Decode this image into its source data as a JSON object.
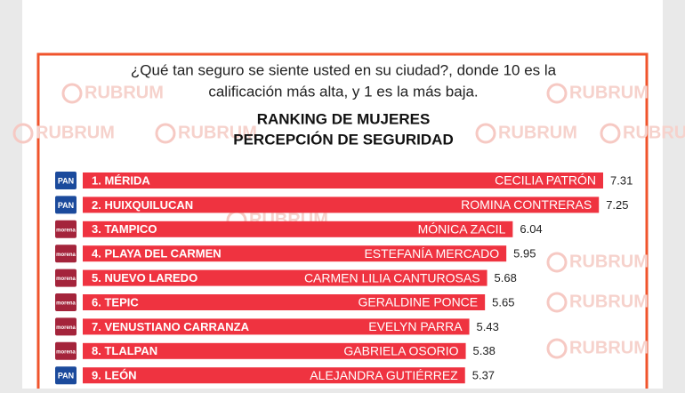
{
  "chart_data": {
    "type": "bar",
    "question": [
      "¿Qué tan seguro se siente usted en su ciudad?, donde 10 es la",
      "calificación más alta, y  1 es la más baja."
    ],
    "title": "RANKING DE MUJERES",
    "subtitle": "PERCEPCIÓN DE SEGURIDAD",
    "watermark": "RUBRUM",
    "color": "#ef3340",
    "categories": [
      "1. MÉRIDA",
      "2. HUIXQUILUCAN",
      "3. TAMPICO",
      "4. PLAYA DEL CARMEN",
      "5. NUEVO LAREDO",
      "6. TEPIC",
      "7. VENUSTIANO CARRANZA",
      "8. TLALPAN",
      "9. LEÓN"
    ],
    "names": [
      "CECILIA PATRÓN",
      "ROMINA CONTRERAS",
      "MÓNICA ZACIL",
      "ESTEFANÍA MERCADO",
      "CARMEN LILIA CANTUROSAS",
      "GERALDINE PONCE",
      "EVELYN PARRA",
      "GABRIELA OSORIO",
      "ALEJANDRA GUTIÉRREZ"
    ],
    "parties": [
      "PAN",
      "PAN",
      "morena",
      "morena",
      "morena",
      "morena",
      "morena",
      "morena",
      "PAN"
    ],
    "values": [
      7.31,
      7.25,
      6.04,
      5.95,
      5.68,
      5.65,
      5.43,
      5.38,
      5.37
    ]
  }
}
